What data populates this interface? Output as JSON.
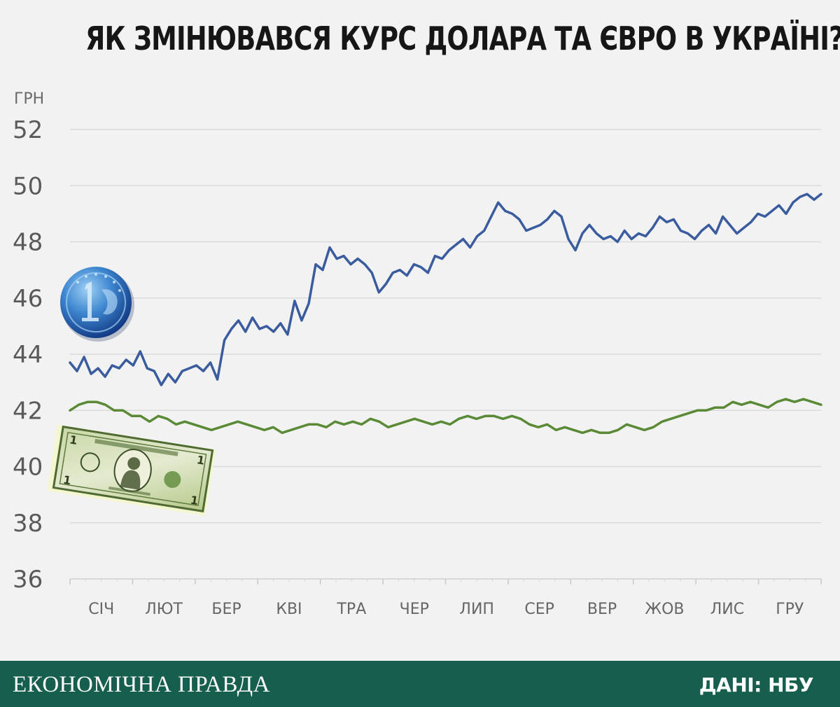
{
  "title": "ЯК ЗМІНЮВАВСЯ КУРС ДОЛАРА ТА ЄВРО В УКРАЇНІ?",
  "footer": {
    "brand": "ЕКОНОМІЧНА ПРАВДА",
    "source": "ДАНІ: НБУ"
  },
  "colors": {
    "eur": "#3a5c9e",
    "usd": "#5a8a36",
    "grid": "#dadada",
    "footer_bg": "#165e4e"
  },
  "icons": {
    "eur": "euro-coin-icon",
    "usd": "dollar-banknote-icon"
  },
  "chart_data": {
    "type": "line",
    "title": "ЯК ЗМІНЮВАВСЯ КУРС ДОЛАРА ТА ЄВРО В УКРАЇНІ?",
    "unit_label": "ГРН",
    "ylim": [
      36,
      52
    ],
    "yticks": [
      36,
      38,
      40,
      42,
      44,
      46,
      48,
      50,
      52
    ],
    "xlabels": [
      "СІЧ",
      "ЛЮТ",
      "БЕР",
      "КВІ",
      "ТРА",
      "ЧЕР",
      "ЛИП",
      "СЕР",
      "ВЕР",
      "ЖОВ",
      "ЛИС",
      "ГРУ"
    ],
    "grid": true,
    "legend": "icons",
    "series": [
      {
        "key": "eur",
        "values": [
          43.7,
          43.4,
          43.9,
          43.3,
          43.5,
          43.2,
          43.6,
          43.5,
          43.8,
          43.6,
          44.1,
          43.5,
          43.4,
          42.9,
          43.3,
          43.0,
          43.4,
          43.5,
          43.6,
          43.4,
          43.7,
          43.1,
          44.5,
          44.9,
          45.2,
          44.8,
          45.3,
          44.9,
          45.0,
          44.8,
          45.1,
          44.7,
          45.9,
          45.2,
          45.8,
          47.2,
          47.0,
          47.8,
          47.4,
          47.5,
          47.2,
          47.4,
          47.2,
          46.9,
          46.2,
          46.5,
          46.9,
          47.0,
          46.8,
          47.2,
          47.1,
          46.9,
          47.5,
          47.4,
          47.7,
          47.9,
          48.1,
          47.8,
          48.2,
          48.4,
          48.9,
          49.4,
          49.1,
          49.0,
          48.8,
          48.4,
          48.5,
          48.6,
          48.8,
          49.1,
          48.9,
          48.1,
          47.7,
          48.3,
          48.6,
          48.3,
          48.1,
          48.2,
          48.0,
          48.4,
          48.1,
          48.3,
          48.2,
          48.5,
          48.9,
          48.7,
          48.8,
          48.4,
          48.3,
          48.1,
          48.4,
          48.6,
          48.3,
          48.9,
          48.6,
          48.3,
          48.5,
          48.7,
          49.0,
          48.9,
          49.1,
          49.3,
          49.0,
          49.4,
          49.6,
          49.7,
          49.5,
          49.7
        ]
      },
      {
        "key": "usd",
        "values": [
          42.0,
          42.2,
          42.3,
          42.3,
          42.2,
          42.0,
          42.0,
          41.8,
          41.8,
          41.6,
          41.8,
          41.7,
          41.5,
          41.6,
          41.5,
          41.4,
          41.3,
          41.4,
          41.5,
          41.6,
          41.5,
          41.4,
          41.3,
          41.4,
          41.2,
          41.3,
          41.4,
          41.5,
          41.5,
          41.4,
          41.6,
          41.5,
          41.6,
          41.5,
          41.7,
          41.6,
          41.4,
          41.5,
          41.6,
          41.7,
          41.6,
          41.5,
          41.6,
          41.5,
          41.7,
          41.8,
          41.7,
          41.8,
          41.8,
          41.7,
          41.8,
          41.7,
          41.5,
          41.4,
          41.5,
          41.3,
          41.4,
          41.3,
          41.2,
          41.3,
          41.2,
          41.2,
          41.3,
          41.5,
          41.4,
          41.3,
          41.4,
          41.6,
          41.7,
          41.8,
          41.9,
          42.0,
          42.0,
          42.1,
          42.1,
          42.3,
          42.2,
          42.3,
          42.2,
          42.1,
          42.3,
          42.4,
          42.3,
          42.4,
          42.3,
          42.2
        ]
      }
    ]
  }
}
